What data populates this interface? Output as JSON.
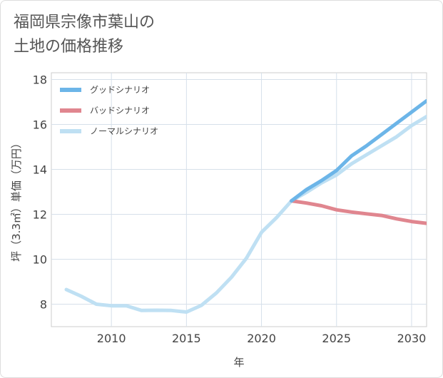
{
  "title_line1": "福岡県宗像市葉山の",
  "title_line2": "土地の価格推移",
  "chart_data": {
    "type": "line",
    "xlabel": "年",
    "ylabel": "坪（3.3㎡）単価（万円）",
    "xlim": [
      2006,
      2031
    ],
    "ylim": [
      7,
      18.3
    ],
    "xticks": [
      2010,
      2015,
      2020,
      2025,
      2030
    ],
    "yticks": [
      8,
      10,
      12,
      14,
      16,
      18
    ],
    "grid": true,
    "legend_position": "top-left",
    "series": [
      {
        "name": "グッドシナリオ",
        "color": "#6cb5e8",
        "x": [
          2022,
          2023,
          2024,
          2025,
          2026,
          2027,
          2028,
          2029,
          2030,
          2031
        ],
        "y": [
          12.6,
          13.1,
          13.5,
          13.95,
          14.6,
          15.05,
          15.55,
          16.05,
          16.55,
          17.05
        ]
      },
      {
        "name": "バッドシナリオ",
        "color": "#e0868f",
        "x": [
          2022,
          2023,
          2024,
          2025,
          2026,
          2027,
          2028,
          2029,
          2030,
          2031
        ],
        "y": [
          12.6,
          12.5,
          12.38,
          12.2,
          12.1,
          12.02,
          11.95,
          11.8,
          11.68,
          11.6
        ]
      },
      {
        "name": "ノーマルシナリオ",
        "color": "#bfe0f3",
        "x": [
          2007,
          2008,
          2009,
          2010,
          2011,
          2012,
          2013,
          2014,
          2015,
          2016,
          2017,
          2018,
          2019,
          2020,
          2021,
          2022,
          2023,
          2024,
          2025,
          2026,
          2027,
          2028,
          2029,
          2030,
          2031
        ],
        "y": [
          8.65,
          8.35,
          8.0,
          7.93,
          7.93,
          7.72,
          7.73,
          7.72,
          7.65,
          7.95,
          8.5,
          9.2,
          10.05,
          11.2,
          11.85,
          12.6,
          12.98,
          13.4,
          13.75,
          14.25,
          14.65,
          15.05,
          15.45,
          15.95,
          16.35
        ]
      }
    ]
  }
}
